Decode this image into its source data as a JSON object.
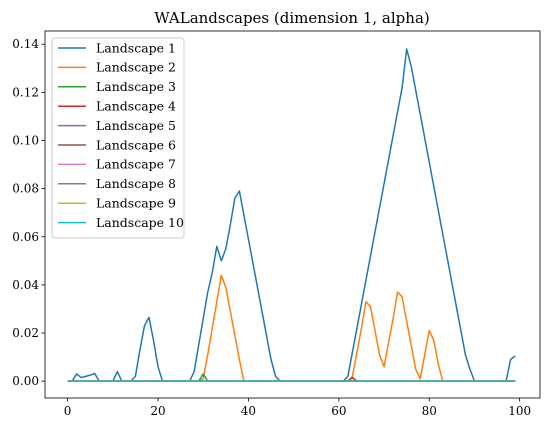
{
  "chart_data": {
    "type": "line",
    "title": "WALandscapes (dimension 1, alpha)",
    "xlabel": "",
    "ylabel": "",
    "xlim": [
      -5,
      104.5
    ],
    "ylim": [
      -0.007,
      0.1455
    ],
    "xticks": [
      0,
      20,
      40,
      60,
      80,
      100
    ],
    "xtick_labels": [
      "0",
      "20",
      "40",
      "60",
      "80",
      "100"
    ],
    "yticks": [
      0.0,
      0.02,
      0.04,
      0.06,
      0.08,
      0.1,
      0.12,
      0.14
    ],
    "ytick_labels": [
      "0.00",
      "0.02",
      "0.04",
      "0.06",
      "0.08",
      "0.10",
      "0.12",
      "0.14"
    ],
    "grid": false,
    "legend_position": "top-left",
    "series": [
      {
        "name": "Landscape 1",
        "color": "#1f77b4",
        "x": [
          0,
          1,
          2,
          3,
          4,
          5,
          6,
          7,
          8,
          9,
          10,
          11,
          12,
          13,
          14,
          15,
          16,
          17,
          18,
          19,
          20,
          21,
          22,
          23,
          24,
          25,
          26,
          27,
          28,
          29,
          30,
          31,
          32,
          33,
          34,
          35,
          36,
          37,
          38,
          39,
          40,
          41,
          42,
          43,
          44,
          45,
          46,
          47,
          48,
          49,
          50,
          51,
          52,
          53,
          54,
          55,
          56,
          57,
          58,
          59,
          60,
          61,
          62,
          63,
          64,
          65,
          66,
          67,
          68,
          69,
          70,
          71,
          72,
          73,
          74,
          75,
          76,
          77,
          78,
          79,
          80,
          81,
          82,
          83,
          84,
          85,
          86,
          87,
          88,
          89,
          90,
          91,
          92,
          93,
          94,
          95,
          96,
          97,
          98,
          99
        ],
        "y": [
          0,
          0,
          0.003,
          0.0015,
          0.002,
          0.0025,
          0.0032,
          0,
          0,
          0,
          0,
          0.004,
          0,
          0,
          0,
          0.002,
          0.013,
          0.023,
          0.0265,
          0.017,
          0.006,
          0,
          0,
          0,
          0,
          0,
          0,
          0,
          0.004,
          0.015,
          0.026,
          0.037,
          0.045,
          0.056,
          0.05,
          0.055,
          0.065,
          0.076,
          0.079,
          0.069,
          0.059,
          0.049,
          0.039,
          0.029,
          0.019,
          0.009,
          0.002,
          0,
          0,
          0,
          0,
          0,
          0,
          0,
          0,
          0,
          0,
          0,
          0,
          0,
          0,
          0,
          0.002,
          0.012,
          0.022,
          0.032,
          0.042,
          0.052,
          0.062,
          0.072,
          0.082,
          0.092,
          0.102,
          0.112,
          0.122,
          0.138,
          0.131,
          0.121,
          0.111,
          0.101,
          0.091,
          0.081,
          0.071,
          0.061,
          0.051,
          0.041,
          0.031,
          0.021,
          0.011,
          0.005,
          0,
          0,
          0,
          0,
          0,
          0,
          0,
          0,
          0.009,
          0.0105
        ]
      },
      {
        "name": "Landscape 2",
        "color": "#ff7f0e",
        "x": [
          0,
          29,
          30,
          31,
          32,
          33,
          34,
          35,
          36,
          37,
          38,
          39,
          40,
          62,
          63,
          64,
          65,
          66,
          67,
          68,
          69,
          70,
          71,
          72,
          73,
          74,
          75,
          76,
          77,
          78,
          79,
          80,
          81,
          82,
          83,
          84,
          99
        ],
        "y": [
          0,
          0,
          0.001,
          0.011,
          0.022,
          0.033,
          0.044,
          0.039,
          0.029,
          0.019,
          0.009,
          0,
          0,
          0,
          0.002,
          0.012,
          0.022,
          0.033,
          0.031,
          0.021,
          0.011,
          0.006,
          0.016,
          0.026,
          0.037,
          0.035,
          0.025,
          0.015,
          0.005,
          0.001,
          0.011,
          0.021,
          0.017,
          0.007,
          0,
          0,
          0
        ]
      },
      {
        "name": "Landscape 3",
        "color": "#2ca02c",
        "x": [
          0,
          29,
          30,
          31,
          99
        ],
        "y": [
          0,
          0,
          0.003,
          0,
          0
        ]
      },
      {
        "name": "Landscape 4",
        "color": "#d62728",
        "x": [
          0,
          62,
          63,
          64,
          99
        ],
        "y": [
          0,
          0,
          0.0015,
          0,
          0
        ]
      },
      {
        "name": "Landscape 5",
        "color": "#9467bd",
        "x": [
          0,
          99
        ],
        "y": [
          0,
          0
        ]
      },
      {
        "name": "Landscape 6",
        "color": "#8c564b",
        "x": [
          0,
          99
        ],
        "y": [
          0,
          0
        ]
      },
      {
        "name": "Landscape 7",
        "color": "#e377c2",
        "x": [
          0,
          99
        ],
        "y": [
          0,
          0
        ]
      },
      {
        "name": "Landscape 8",
        "color": "#7f7f7f",
        "x": [
          0,
          99
        ],
        "y": [
          0,
          0
        ]
      },
      {
        "name": "Landscape 9",
        "color": "#bcbd22",
        "x": [
          0,
          99
        ],
        "y": [
          0,
          0
        ]
      },
      {
        "name": "Landscape 10",
        "color": "#17becf",
        "x": [
          0,
          99
        ],
        "y": [
          0,
          0
        ]
      }
    ]
  }
}
